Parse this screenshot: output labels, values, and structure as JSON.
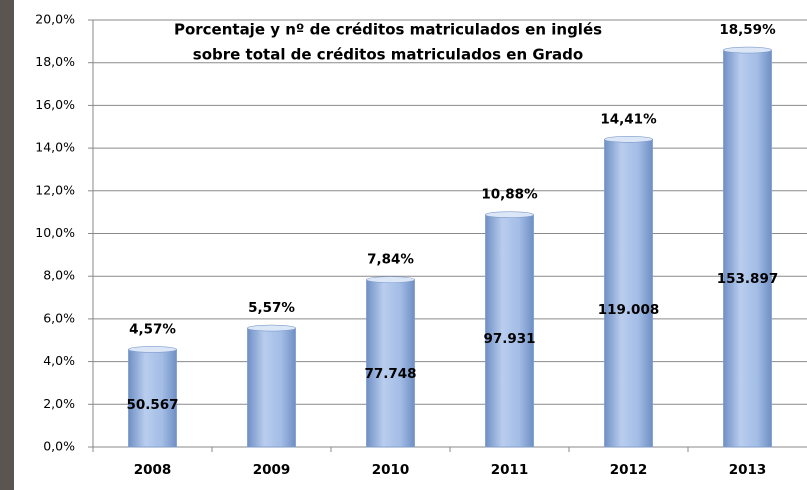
{
  "chart_data": {
    "type": "bar",
    "title": [
      "Porcentaje  y nº de créditos matriculados en inglés",
      "sobre total de créditos matriculados en Grado"
    ],
    "categories": [
      "2008",
      "2009",
      "2010",
      "2011",
      "2012",
      "2013"
    ],
    "values": [
      4.57,
      5.57,
      7.84,
      10.88,
      14.41,
      18.59
    ],
    "value_labels": [
      "4,57%",
      "5,57%",
      "7,84%",
      "10,88%",
      "14,41%",
      "18,59%"
    ],
    "count_labels": [
      "50.567",
      null,
      "77.748",
      "97.931",
      "119.008",
      "153.897"
    ],
    "color": "#9bb8e2",
    "ylim": [
      0,
      20
    ],
    "yticks": [
      {
        "value": 0,
        "label": "0,0%"
      },
      {
        "value": 2,
        "label": "2,0%"
      },
      {
        "value": 4,
        "label": "4,0%"
      },
      {
        "value": 6,
        "label": "6,0%"
      },
      {
        "value": 8,
        "label": "8,0%"
      },
      {
        "value": 10,
        "label": "10,0%"
      },
      {
        "value": 12,
        "label": "12,0%"
      },
      {
        "value": 14,
        "label": "14,0%"
      },
      {
        "value": 16,
        "label": "16,0%"
      },
      {
        "value": 18,
        "label": "18,0%"
      },
      {
        "value": 20,
        "label": "20,0%"
      }
    ],
    "grid": true
  }
}
